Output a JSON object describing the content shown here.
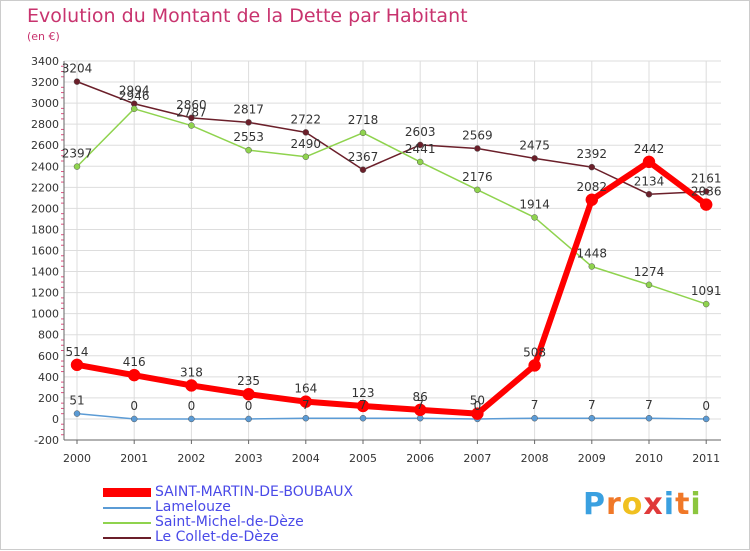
{
  "title": "Evolution du Montant de la Dette par Habitant",
  "subtitle": "(en €)",
  "logo": {
    "text": "Proxiti",
    "colors": [
      "#3aa0e0",
      "#f07828",
      "#f0c020",
      "#e03a3a",
      "#3aa0e0",
      "#f07828",
      "#8cc63f"
    ]
  },
  "chart_data": {
    "type": "line",
    "title": "Evolution du Montant de la Dette par Habitant",
    "subtitle": "(en €)",
    "x": [
      "2000",
      "2001",
      "2002",
      "2003",
      "2004",
      "2005",
      "2006",
      "2007",
      "2008",
      "2009",
      "2010",
      "2011"
    ],
    "ylim": [
      -200,
      3400
    ],
    "yticks": [
      "-200",
      "0",
      "200",
      "400",
      "600",
      "800",
      "1000",
      "1200",
      "1400",
      "1600",
      "1800",
      "2000",
      "2200",
      "2400",
      "2600",
      "2800",
      "3000",
      "3200",
      "3400"
    ],
    "grid": true,
    "legend_position": "bottom-left",
    "series": [
      {
        "name": "Le Collet-de-Dèze",
        "color": "#6b1f2a",
        "values": [
          3204,
          2994,
          2860,
          2817,
          2722,
          2367,
          2603,
          2569,
          2475,
          2392,
          2134,
          2161
        ],
        "labels": [
          "3204",
          "2994",
          "2860",
          "2817",
          "2722",
          "2367",
          "2603",
          "2569",
          "2475",
          "2392",
          "2134",
          "2161"
        ]
      },
      {
        "name": "Saint-Michel-de-Dèze",
        "color": "#8fd34e",
        "values": [
          2397,
          2946,
          2787,
          2553,
          2490,
          2718,
          2441,
          2176,
          1914,
          1448,
          1274,
          1091
        ],
        "labels": [
          "2397",
          "2946",
          "2787",
          "2553",
          "2490",
          "2718",
          "2441",
          "2176",
          "1914",
          "1448",
          "1274",
          "1091"
        ]
      },
      {
        "name": "Lamelouze",
        "color": "#5b9bd5",
        "values": [
          51,
          0,
          0,
          0,
          7,
          7,
          7,
          0,
          7,
          7,
          7,
          0
        ],
        "labels": [
          "51",
          "0",
          "0",
          "0",
          "7",
          "7",
          "7",
          "0",
          "7",
          "7",
          "7",
          "0"
        ]
      },
      {
        "name": "SAINT-MARTIN-DE-BOUBAUX",
        "color": "#ff0000",
        "values": [
          514,
          416,
          318,
          235,
          164,
          123,
          86,
          50,
          508,
          2082,
          2442,
          2036
        ],
        "labels": [
          "514",
          "416",
          "318",
          "235",
          "164",
          "123",
          "86",
          "50",
          "508",
          "2082",
          "2442",
          "2036"
        ]
      }
    ]
  }
}
